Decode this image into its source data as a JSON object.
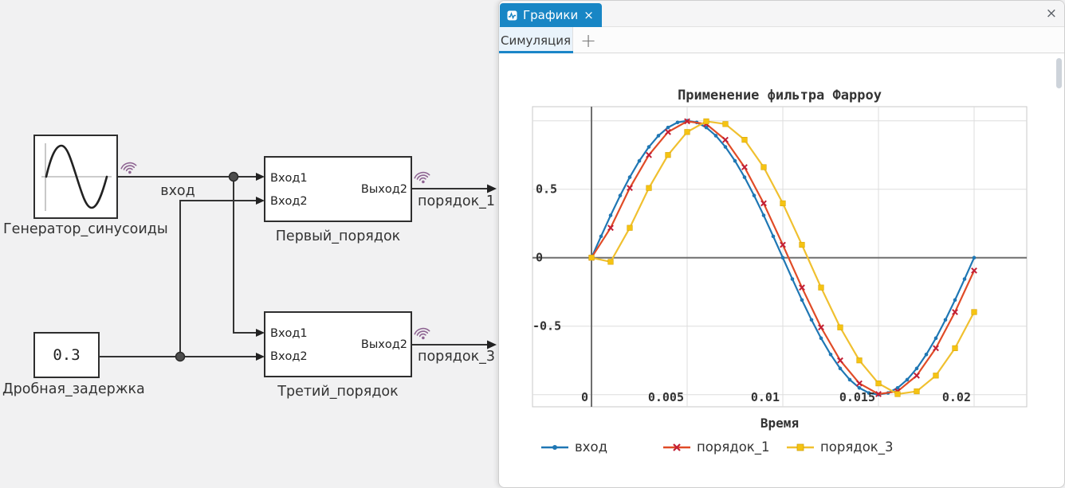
{
  "diagram": {
    "blocks": {
      "sine_gen": {
        "label": "Генератор_синусоиды"
      },
      "delay_const": {
        "label": "Дробная_задержка",
        "value": "0.3"
      },
      "first_order": {
        "label": "Первый_порядок",
        "port_in1": "Вход1",
        "port_in2": "Вход2",
        "port_out": "Выход2"
      },
      "third_order": {
        "label": "Третий_порядок",
        "port_in1": "Вход1",
        "port_in2": "Вход2",
        "port_out": "Выход2"
      }
    },
    "wire_labels": {
      "input": "вход",
      "order1": "порядок_1",
      "order3": "порядок_3"
    }
  },
  "window": {
    "tab_title": "Графики",
    "tab_close": "×",
    "window_close": "×",
    "sim_tab": "Симуляция",
    "add_tab": "+"
  },
  "colors": {
    "accent_blue": "#1886c5",
    "wifi": "#8e6492",
    "series_input": "#1f77b4",
    "series_order1": "#e04b27",
    "series_order1_marker": "#c21f35",
    "series_order3": "#f0c02f",
    "series_order3_marker": "#f5c312"
  },
  "chart_data": {
    "type": "line",
    "title": "Применение фильтра Фарроу",
    "xlabel": "Время",
    "x_ticks": [
      "0",
      "0.005",
      "0.01",
      "0.015",
      "0.02"
    ],
    "x_tick_values": [
      0,
      0.005,
      0.01,
      0.015,
      0.02
    ],
    "y_ticks": [
      "0.5",
      "0",
      "-0.5"
    ],
    "y_tick_values": [
      0.5,
      0,
      -0.5
    ],
    "xlim": [
      -0.0031,
      0.02275
    ],
    "ylim": [
      -1.09,
      1.1
    ],
    "grid": true,
    "legend_position": "bottom",
    "series": [
      {
        "name": "вход",
        "color": "#1f77b4",
        "marker": "circle",
        "marker_color": "#1f77b4",
        "x": [
          0,
          0.0005,
          0.001,
          0.0015,
          0.002,
          0.0025,
          0.003,
          0.0035,
          0.004,
          0.0045,
          0.005,
          0.0055,
          0.006,
          0.0065,
          0.007,
          0.0075,
          0.008,
          0.0085,
          0.009,
          0.0095,
          0.01,
          0.0105,
          0.011,
          0.0115,
          0.012,
          0.0125,
          0.013,
          0.0135,
          0.014,
          0.0145,
          0.015,
          0.0155,
          0.016,
          0.0165,
          0.017,
          0.0175,
          0.018,
          0.0185,
          0.019,
          0.0195,
          0.02
        ],
        "y": [
          0,
          0.156,
          0.309,
          0.454,
          0.588,
          0.707,
          0.809,
          0.891,
          0.951,
          0.988,
          1,
          0.988,
          0.951,
          0.891,
          0.809,
          0.707,
          0.588,
          0.454,
          0.309,
          0.156,
          0,
          -0.156,
          -0.309,
          -0.454,
          -0.588,
          -0.707,
          -0.809,
          -0.891,
          -0.951,
          -0.988,
          -1,
          -0.988,
          -0.951,
          -0.891,
          -0.809,
          -0.707,
          -0.588,
          -0.454,
          -0.309,
          -0.156,
          0
        ]
      },
      {
        "name": "порядок_1",
        "color": "#e04b27",
        "marker": "x",
        "marker_color": "#c21f35",
        "x": [
          0,
          0.001,
          0.002,
          0.003,
          0.004,
          0.005,
          0.006,
          0.007,
          0.008,
          0.009,
          0.01,
          0.011,
          0.012,
          0.013,
          0.014,
          0.015,
          0.016,
          0.017,
          0.018,
          0.019,
          0.02
        ],
        "y": [
          0,
          0.218,
          0.509,
          0.75,
          0.918,
          0.996,
          0.976,
          0.861,
          0.661,
          0.397,
          0.094,
          -0.218,
          -0.509,
          -0.75,
          -0.918,
          -0.996,
          -0.976,
          -0.861,
          -0.661,
          -0.397,
          -0.094
        ]
      },
      {
        "name": "порядок_3",
        "color": "#f0c02f",
        "marker": "square",
        "marker_color": "#f5c312",
        "x": [
          0,
          0.001,
          0.002,
          0.003,
          0.004,
          0.005,
          0.006,
          0.007,
          0.008,
          0.009,
          0.01,
          0.011,
          0.012,
          0.013,
          0.014,
          0.015,
          0.016,
          0.017,
          0.018,
          0.019,
          0.02
        ],
        "y": [
          0,
          -0.03,
          0.218,
          0.509,
          0.75,
          0.918,
          0.996,
          0.976,
          0.861,
          0.661,
          0.397,
          0.094,
          -0.218,
          -0.509,
          -0.75,
          -0.918,
          -0.996,
          -0.976,
          -0.861,
          -0.661,
          -0.397
        ]
      }
    ]
  }
}
